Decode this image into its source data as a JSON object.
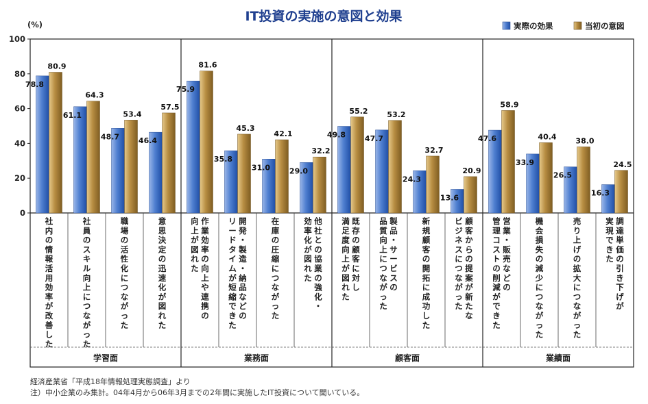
{
  "chart_data": {
    "type": "bar",
    "title": "IT投資の実施の意図と効果",
    "ylabel": "(%)",
    "ylim": [
      0,
      100
    ],
    "yticks": [
      0,
      20,
      40,
      60,
      80,
      100
    ],
    "legend_position": "top-right",
    "series": [
      {
        "name": "実際の効果",
        "color": "#4f7fd0",
        "values": [
          78.8,
          61.1,
          48.7,
          46.4,
          75.9,
          35.8,
          31.0,
          29.0,
          49.8,
          47.7,
          24.3,
          13.6,
          47.6,
          33.9,
          26.5,
          16.3
        ]
      },
      {
        "name": "当初の意図",
        "color": "#b78d42",
        "values": [
          80.9,
          64.3,
          53.4,
          57.5,
          81.6,
          45.3,
          42.1,
          32.2,
          55.2,
          53.2,
          32.7,
          20.9,
          58.9,
          40.4,
          38.0,
          24.5
        ]
      }
    ],
    "categories": [
      [
        "社内の情報活用効率が改善した"
      ],
      [
        "社員のスキル向上につながった"
      ],
      [
        "職場の活性化につながった"
      ],
      [
        "意思決定の迅速化が図れた"
      ],
      [
        "作業効率の向上や連携の",
        "向上が図れた"
      ],
      [
        "開発・製造・納品などの",
        "リードタイムが短縮できた"
      ],
      [
        "在庫の圧縮につながった"
      ],
      [
        "他社との協業の強化・",
        "効率化が図れた"
      ],
      [
        "既存の顧客に対し",
        "満足度向上が図れた"
      ],
      [
        "製品・サービスの",
        "品質向上につながった"
      ],
      [
        "新規顧客の開拓に成功した"
      ],
      [
        "顧客からの提案が新たな",
        "ビジネスにつながった"
      ],
      [
        "営業・販売などの",
        "管理コストの削減ができた"
      ],
      [
        "機会損失の減少につながった"
      ],
      [
        "売り上げの拡大につながった"
      ],
      [
        "調達単価の引き下げが",
        "実現できた"
      ]
    ],
    "groups": [
      {
        "label": "学習面",
        "start": 0,
        "count": 4
      },
      {
        "label": "業務面",
        "start": 4,
        "count": 4
      },
      {
        "label": "顧客面",
        "start": 8,
        "count": 4
      },
      {
        "label": "業績面",
        "start": 12,
        "count": 4
      }
    ]
  },
  "notes": {
    "source": "経済産業省「平成18年情報処理実態調査」より",
    "note": "注）中小企業のみ集計。04年4月から06年3月までの2年間に実施したIT投資について聞いている。"
  }
}
